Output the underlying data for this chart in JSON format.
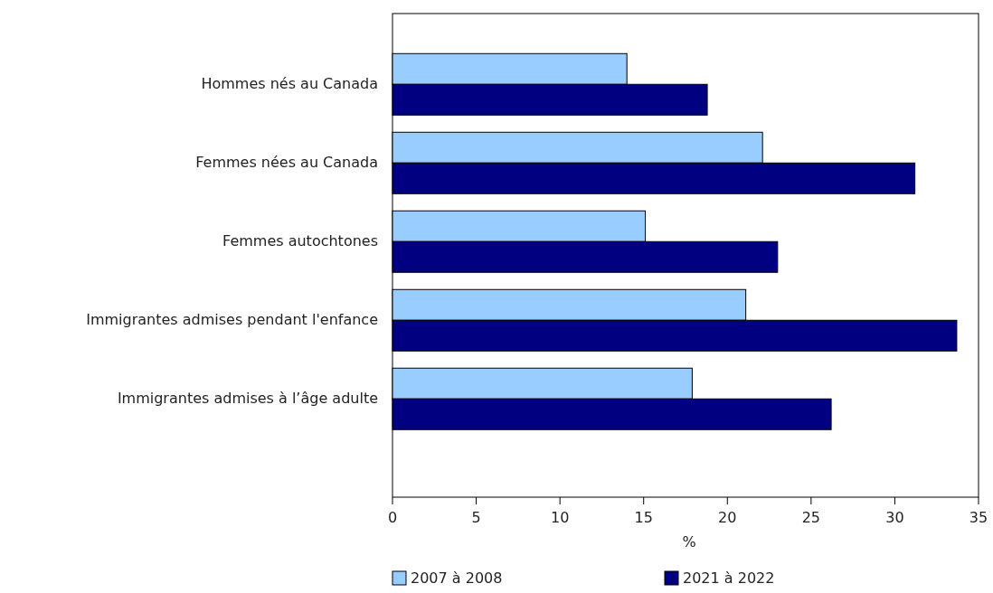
{
  "chart_data": {
    "type": "bar",
    "orientation": "horizontal",
    "xlabel": "%",
    "categories": [
      "Hommes nés au Canada",
      "Femmes nées au Canada",
      "Femmes autochtones",
      "Immigrantes admises pendant l'enfance",
      "Immigrantes admises à l’âge adulte"
    ],
    "series": [
      {
        "name": "2007 à 2008",
        "color": "#99ccff",
        "values": [
          14.0,
          22.1,
          15.1,
          21.1,
          17.9
        ]
      },
      {
        "name": "2021 à 2022",
        "color": "#000080",
        "values": [
          18.8,
          31.2,
          23.0,
          33.7,
          26.2
        ]
      }
    ],
    "xlim": [
      0,
      35
    ],
    "xticks": [
      0,
      5,
      10,
      15,
      20,
      25,
      30,
      35
    ],
    "grid": false,
    "legend": "bottom"
  }
}
